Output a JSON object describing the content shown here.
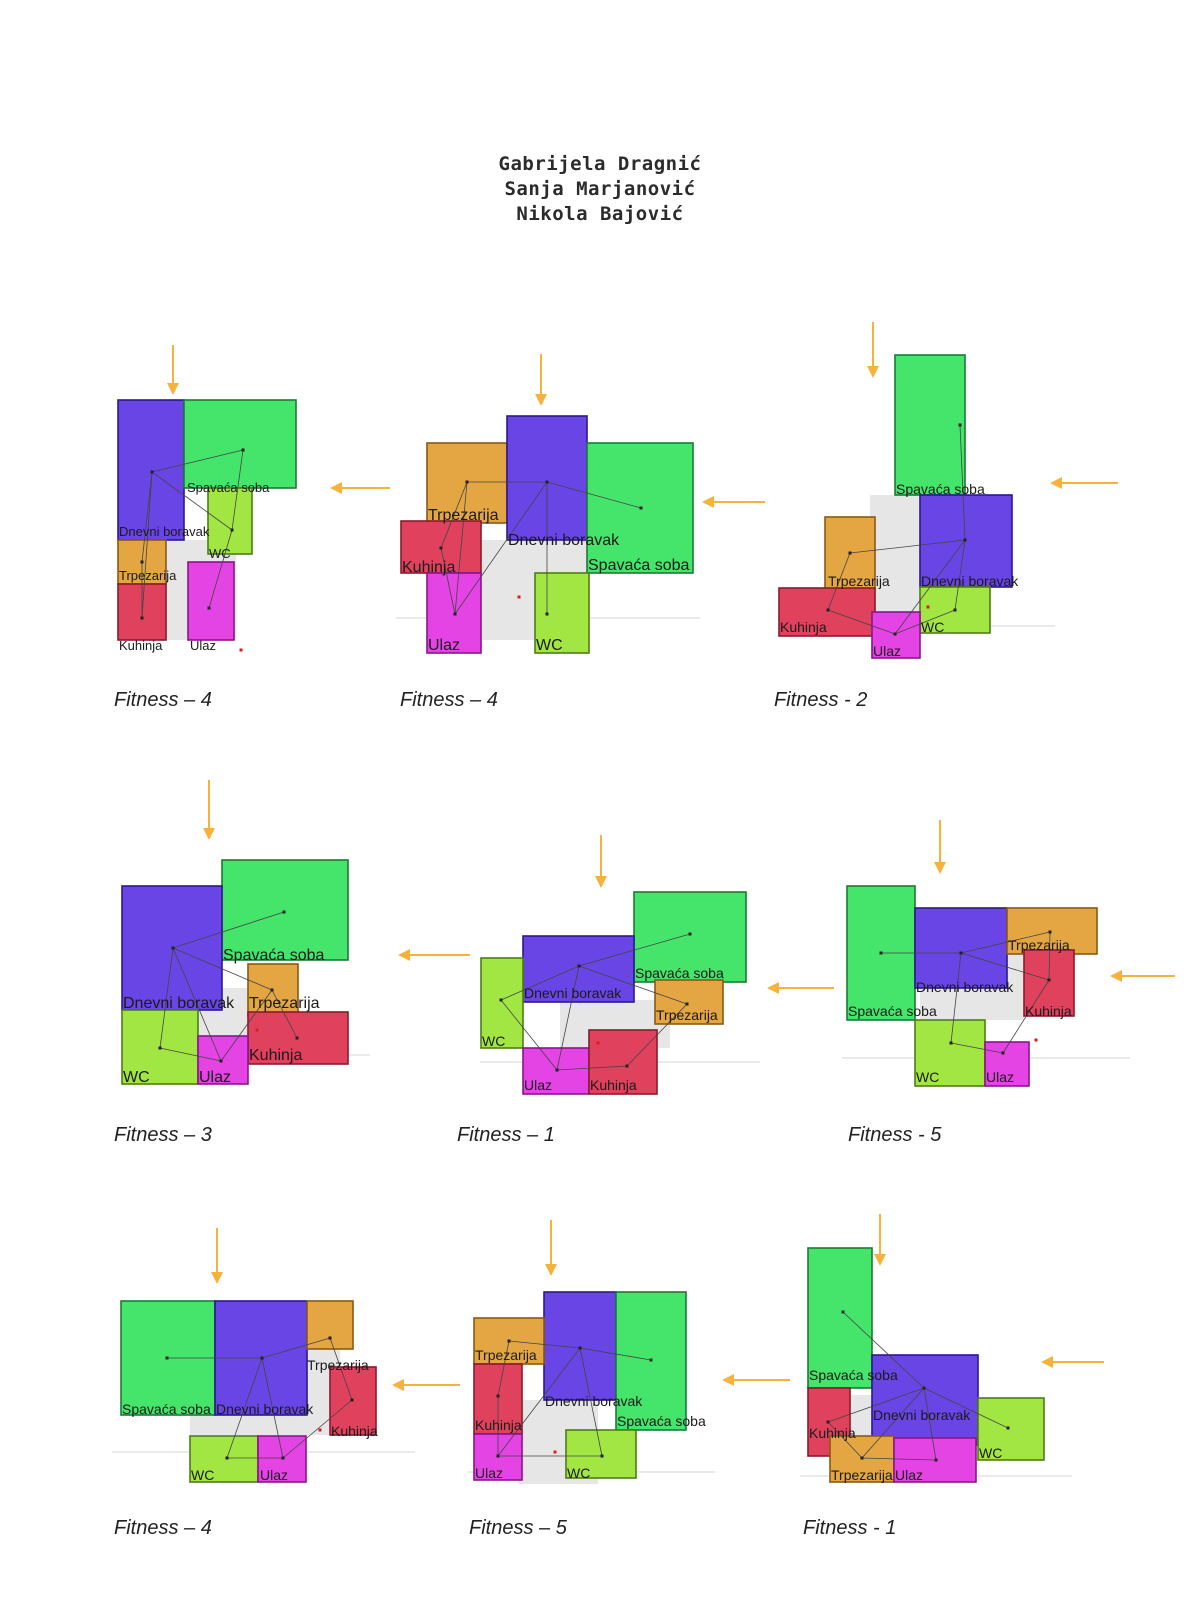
{
  "authors": [
    "Gabrijela Dragnić",
    "Sanja Marjanović",
    "Nikola Bajović"
  ],
  "colors": {
    "living": "#6a45e6",
    "bedroom": "#45e46a",
    "dining": "#e3a642",
    "kitchen": "#e0425e",
    "entrance": "#e344e3",
    "wc": "#a2e644",
    "corridor": "#e6e6e6",
    "arrow": "#f7b23c"
  },
  "room_labels": {
    "living": "Dnevni boravak",
    "bedroom": "Spavaća soba",
    "dining": "Trpezarija",
    "kitchen": "Kuhinja",
    "entrance": "Ulaz",
    "wc": "WC"
  },
  "fitness": [
    "Fitness – 4",
    "Fitness – 4",
    "Fitness - 2",
    "Fitness – 3",
    "Fitness – 1",
    "Fitness - 5",
    "Fitness – 4",
    "Fitness – 5",
    "Fitness - 1"
  ]
}
